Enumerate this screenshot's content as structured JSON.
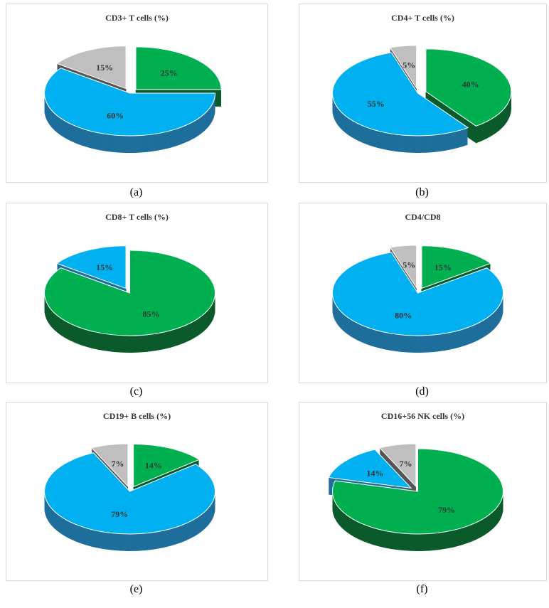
{
  "chart_data": [
    {
      "type": "pie",
      "title": "CD3+ T cells  (%)",
      "caption": "(a)",
      "slices": [
        {
          "value": 25,
          "label": "25%",
          "color": "#00b050"
        },
        {
          "value": 60,
          "label": "60%",
          "color": "#00b0f0"
        },
        {
          "value": 15,
          "label": "15%",
          "color": "#bfbfbf"
        }
      ]
    },
    {
      "type": "pie",
      "title": "CD4+ T cells  (%)",
      "caption": "(b)",
      "slices": [
        {
          "value": 40,
          "label": "40%",
          "color": "#00b050"
        },
        {
          "value": 55,
          "label": "55%",
          "color": "#00b0f0"
        },
        {
          "value": 5,
          "label": "5%",
          "color": "#bfbfbf"
        }
      ]
    },
    {
      "type": "pie",
      "title": "CD8+ T cells  (%)",
      "caption": "(c)",
      "slices": [
        {
          "value": 85,
          "label": "85%",
          "color": "#00b050"
        },
        {
          "value": 15,
          "label": "15%",
          "color": "#00b0f0"
        }
      ]
    },
    {
      "type": "pie",
      "title": "CD4/CD8",
      "caption": "(d)",
      "slices": [
        {
          "value": 15,
          "label": "15%",
          "color": "#00b050"
        },
        {
          "value": 80,
          "label": "80%",
          "color": "#00b0f0"
        },
        {
          "value": 5,
          "label": "5%",
          "color": "#bfbfbf"
        }
      ]
    },
    {
      "type": "pie",
      "title": "CD19+ B cells  (%)",
      "caption": "(e)",
      "slices": [
        {
          "value": 14,
          "label": "14%",
          "color": "#00b050"
        },
        {
          "value": 79,
          "label": "79%",
          "color": "#00b0f0"
        },
        {
          "value": 7,
          "label": "7%",
          "color": "#bfbfbf"
        }
      ]
    },
    {
      "type": "pie",
      "title": "CD16+56 NK cells  (%)",
      "caption": "(f)",
      "slices": [
        {
          "value": 79,
          "label": "79%",
          "color": "#00b050"
        },
        {
          "value": 14,
          "label": "14%",
          "color": "#00b0f0"
        },
        {
          "value": 7,
          "label": "7%",
          "color": "#bfbfbf"
        }
      ]
    }
  ]
}
